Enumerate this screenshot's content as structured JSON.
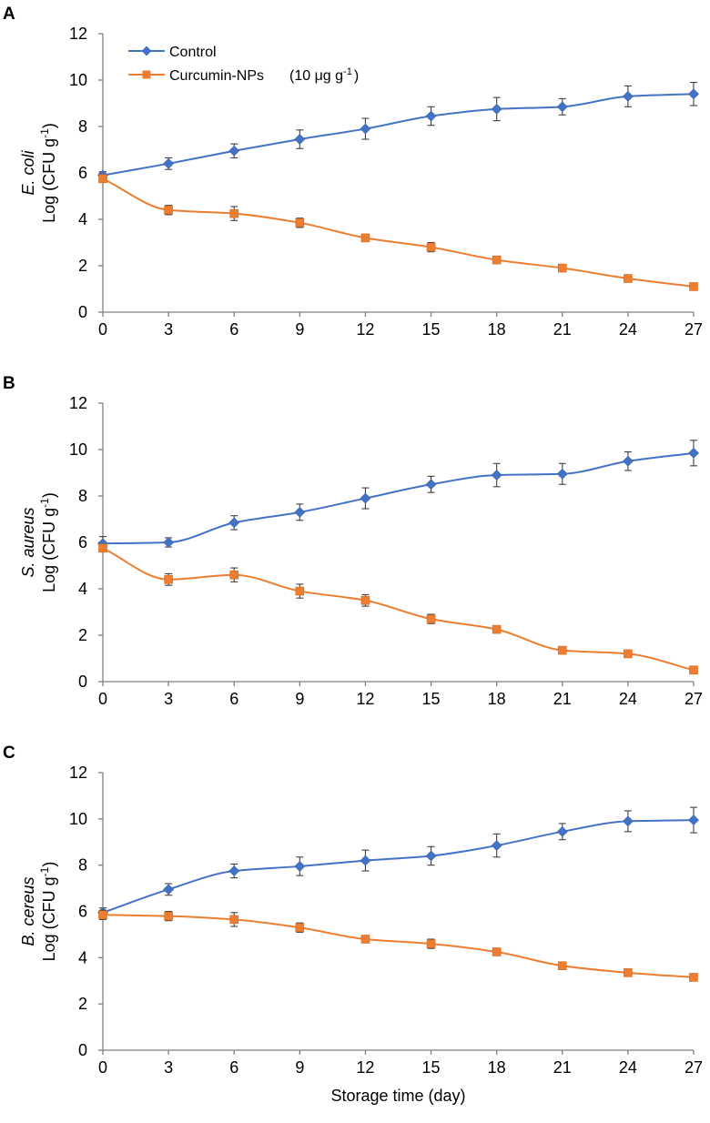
{
  "chart_data": [
    {
      "type": "line",
      "panel_label": "A",
      "organism": "E. coli",
      "ylabel": "Log (CFU g",
      "ylabel_sup": "-1",
      "ylabel_close": ")",
      "xlabel": "",
      "x": [
        0,
        3,
        6,
        9,
        12,
        15,
        18,
        21,
        24,
        27
      ],
      "ylim": [
        0,
        12
      ],
      "yticks": [
        0,
        2,
        4,
        6,
        8,
        10,
        12
      ],
      "series": [
        {
          "name": "Control",
          "color": "#4472C4",
          "marker": "diamond",
          "values": [
            5.9,
            6.4,
            6.95,
            7.45,
            7.9,
            8.45,
            8.75,
            8.85,
            9.3,
            9.4
          ],
          "errors": [
            0.15,
            0.25,
            0.3,
            0.4,
            0.45,
            0.4,
            0.5,
            0.35,
            0.45,
            0.5
          ]
        },
        {
          "name": "Curcumin-NPs",
          "color": "#ED7D31",
          "marker": "square",
          "values": [
            5.75,
            4.4,
            4.25,
            3.85,
            3.2,
            2.8,
            2.25,
            1.9,
            1.45,
            1.1
          ],
          "errors": [
            0.15,
            0.2,
            0.3,
            0.2,
            0.1,
            0.2,
            0.1,
            0.1,
            0.1,
            0.1
          ]
        }
      ]
    },
    {
      "type": "line",
      "panel_label": "B",
      "organism": "S. aureus",
      "ylabel": "Log (CFU g",
      "ylabel_sup": "-1",
      "ylabel_close": ")",
      "xlabel": "",
      "x": [
        0,
        3,
        6,
        9,
        12,
        15,
        18,
        21,
        24,
        27
      ],
      "ylim": [
        0,
        12
      ],
      "yticks": [
        0,
        2,
        4,
        6,
        8,
        10,
        12
      ],
      "series": [
        {
          "name": "Control",
          "color": "#4472C4",
          "marker": "diamond",
          "values": [
            5.95,
            6.0,
            6.85,
            7.3,
            7.9,
            8.5,
            8.9,
            8.95,
            9.5,
            9.85
          ],
          "errors": [
            0.3,
            0.2,
            0.3,
            0.35,
            0.45,
            0.35,
            0.5,
            0.45,
            0.4,
            0.55
          ]
        },
        {
          "name": "Curcumin-NPs",
          "color": "#ED7D31",
          "marker": "square",
          "values": [
            5.75,
            4.4,
            4.6,
            3.9,
            3.5,
            2.7,
            2.25,
            1.35,
            1.2,
            0.5
          ],
          "errors": [
            0.15,
            0.25,
            0.3,
            0.3,
            0.25,
            0.2,
            0.1,
            0.1,
            0.1,
            0.1
          ]
        }
      ]
    },
    {
      "type": "line",
      "panel_label": "C",
      "organism": "B. cereus",
      "ylabel": "Log (CFU g",
      "ylabel_sup": "-1",
      "ylabel_close": ")",
      "xlabel": "Storage time (day)",
      "x": [
        0,
        3,
        6,
        9,
        12,
        15,
        18,
        21,
        24,
        27
      ],
      "ylim": [
        0,
        12
      ],
      "yticks": [
        0,
        2,
        4,
        6,
        8,
        10,
        12
      ],
      "series": [
        {
          "name": "Control",
          "color": "#4472C4",
          "marker": "diamond",
          "values": [
            5.95,
            6.95,
            7.75,
            7.95,
            8.2,
            8.4,
            8.85,
            9.45,
            9.9,
            9.95
          ],
          "errors": [
            0.2,
            0.25,
            0.3,
            0.4,
            0.45,
            0.4,
            0.5,
            0.35,
            0.45,
            0.55
          ]
        },
        {
          "name": "Curcumin-NPs",
          "color": "#ED7D31",
          "marker": "square",
          "values": [
            5.85,
            5.8,
            5.65,
            5.3,
            4.8,
            4.6,
            4.25,
            3.65,
            3.35,
            3.15
          ],
          "errors": [
            0.2,
            0.2,
            0.3,
            0.2,
            0.1,
            0.2,
            0.1,
            0.1,
            0.1,
            0.1
          ]
        }
      ]
    }
  ],
  "legend": {
    "control_label": "Control",
    "treatment_label": "Curcumin-NPs",
    "treatment_dose": "(10 μg g",
    "treatment_dose_sup": "-1",
    "treatment_dose_close": ")"
  }
}
